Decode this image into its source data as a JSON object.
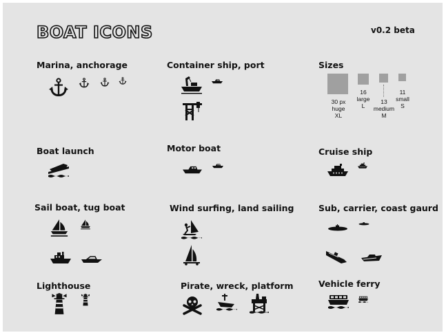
{
  "title": "BOAT ICONS",
  "version": "v0.2 beta",
  "sections": {
    "marina": "Marina, anchorage",
    "container": "Container ship, port",
    "sizes": "Sizes",
    "launch": "Boat launch",
    "motor": "Motor boat",
    "cruise": "Cruise ship",
    "sail": "Sail boat, tug boat",
    "wind": "Wind surfing, land sailing",
    "sub": "Sub, carrier, coast gaurd",
    "lighthouse": "Lighthouse",
    "pirate": "Pirate, wreck, platform",
    "ferry": "Vehicle ferry"
  },
  "sizes": [
    {
      "px": "30 px",
      "name": "huge",
      "code": "XL"
    },
    {
      "px": "16",
      "name": "large",
      "code": "L"
    },
    {
      "px": "13",
      "name": "medium",
      "code": "M"
    },
    {
      "px": "11",
      "name": "small",
      "code": "S"
    }
  ],
  "colors": {
    "background": "#e4e4e4",
    "icon": "#111111",
    "swatch": "#a0a0a0"
  },
  "icons": [
    "anchor-icon",
    "crane-ship-icon",
    "boat-launch-icon",
    "motor-boat-icon",
    "cruise-ship-icon",
    "sail-boat-icon",
    "tug-boat-icon",
    "windsurf-icon",
    "land-sail-icon",
    "submarine-icon",
    "carrier-icon",
    "coast-guard-icon",
    "lighthouse-icon",
    "skull-crossbones-icon",
    "wreck-icon",
    "oil-platform-icon",
    "vehicle-ferry-icon"
  ]
}
